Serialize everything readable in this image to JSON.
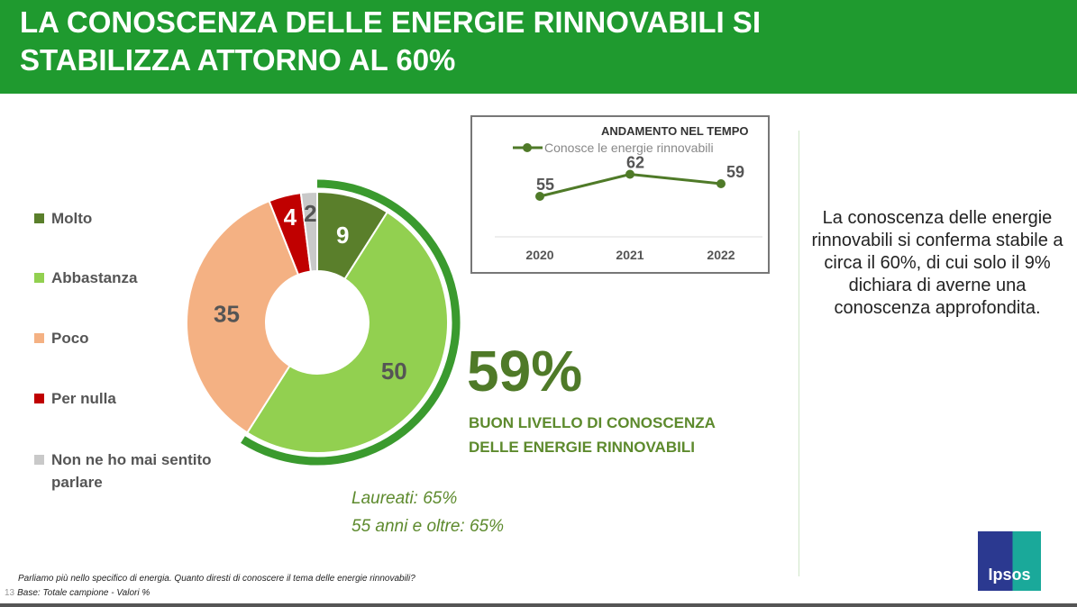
{
  "header": {
    "title": "LA CONOSCENZA DELLE ENERGIE RINNOVABILI SI STABILIZZA ATTORNO AL 60%"
  },
  "chart_data": [
    {
      "type": "pie",
      "title": "",
      "categories": [
        "Molto",
        "Abbastanza",
        "Poco",
        "Per nulla",
        "Non ne ho mai sentito parlare"
      ],
      "values": [
        9,
        50,
        35,
        4,
        2
      ],
      "colors": [
        "#5a7f2b",
        "#92d050",
        "#f4b183",
        "#c00000",
        "#c9c9c9"
      ],
      "highlight_total": 59,
      "legend_position": "left"
    },
    {
      "type": "line",
      "title": "ANDAMENTO NEL TEMPO",
      "series": [
        {
          "name": "Conosce le energie rinnovabili",
          "values": [
            55,
            62,
            59
          ]
        }
      ],
      "x": [
        "2020",
        "2021",
        "2022"
      ],
      "color": "#4f7a28"
    }
  ],
  "kpi": {
    "value": "59%",
    "label_line1": "BUON LIVELLO DI CONOSCENZA",
    "label_line2": "DELLE ENERGIE RINNOVABILI"
  },
  "notes": [
    "Laureati: 65%",
    "55 anni e oltre: 65%"
  ],
  "side_text": "La conoscenza delle energie rinnovabili si conferma stabile a circa il 60%, di cui solo il 9% dichiara di averne una conoscenza approfondita.",
  "footer": {
    "question": "Parliamo più nello specifico di energia. Quanto diresti di conoscere il tema delle energie rinnovabili?",
    "base": "Base: Totale campione - Valori %",
    "page": "13"
  },
  "logo": "Ipsos"
}
